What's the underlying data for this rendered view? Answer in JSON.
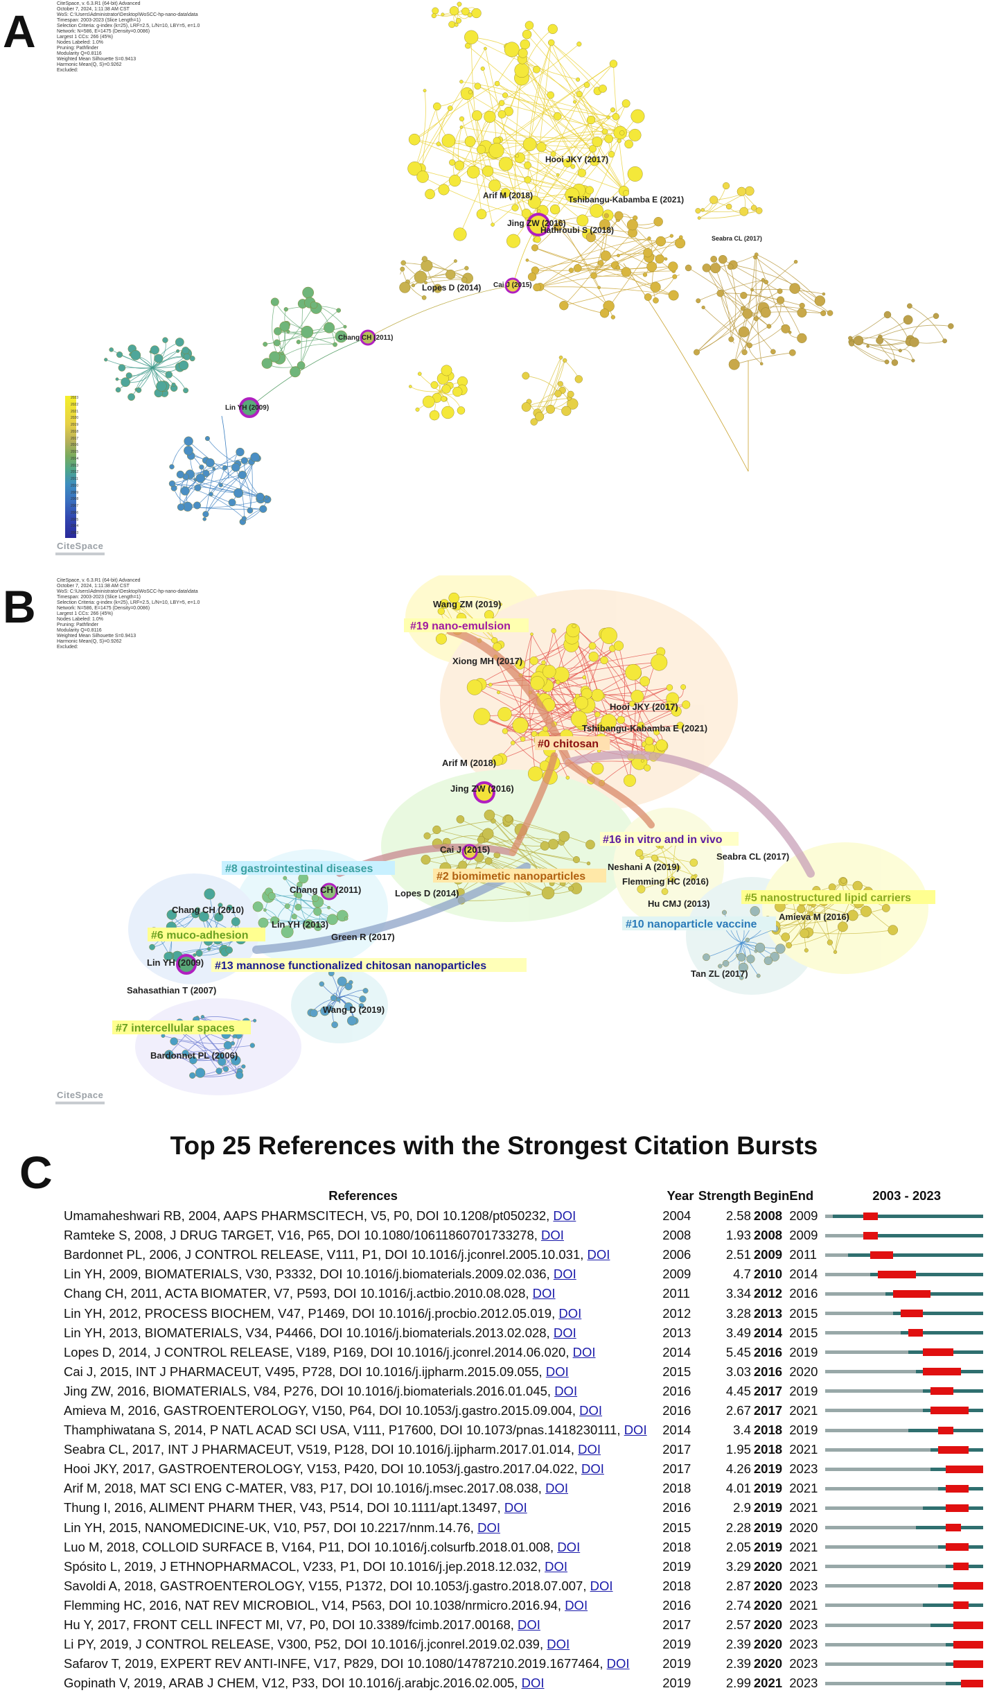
{
  "panel_a": {
    "letter": "A",
    "meta_lines": [
      "CiteSpace, v. 6.3.R1 (64-bit) Advanced",
      "October 7, 2024, 1:11:38 AM CST",
      "WoS: C:\\Users\\Administrator\\Desktop\\WoSCC-hp-nano-data\\data",
      "Timespan: 2003-2023 (Slice Length=1)",
      "Selection Criteria: g-index (k=25), LRF=2.5, L/N=10, LBY=5, e=1.0",
      "Network: N=586, E=1475 (Density=0.0086)",
      "Largest 1 CCs: 266 (45%)",
      "Nodes Labeled: 1.0%",
      "Pruning: Pathfinder",
      "Modularity Q=0.8116",
      "Weighted Mean Silhouette S=0.9413",
      "Harmonic Mean(Q, S)=0.9262",
      "Excluded:"
    ],
    "node_labels": {
      "hooi": "Hooi JKY (2017)",
      "arif": "Arif M (2018)",
      "tshibangu": "Tshibangu-Kabamba E (2021)",
      "jing": "Jing ZW (2016)",
      "hathroubi": "Hathroubi S (2018)",
      "seabra": "Seabra CL (2017)",
      "lopes": "Lopes D (2014)",
      "cai": "Cai J (2015)",
      "chang": "Chang CH (2011)",
      "lin": "Lin YH (2009)"
    },
    "legend_years": [
      "2023",
      "2022",
      "2021",
      "2020",
      "2019",
      "2018",
      "2017",
      "2016",
      "2015",
      "2014",
      "2013",
      "2012",
      "2011",
      "2010",
      "2009",
      "2008",
      "2007",
      "2006",
      "2005",
      "2004",
      "2003"
    ],
    "logo": "CiteSpace"
  },
  "panel_b": {
    "letter": "B",
    "meta_lines": [
      "CiteSpace, v. 6.3.R1 (64-bit) Advanced",
      "October 7, 2024, 1:11:38 AM CST",
      "WoS: C:\\Users\\Administrator\\Desktop\\WoSCC-hp-nano-data\\data",
      "Timespan: 2003-2023 (Slice Length=1)",
      "Selection Criteria: g-index (k=25), LRF=2.5, L/N=10, LBY=5, e=1.0",
      "Network: N=586, E=1475 (Density=0.0086)",
      "Largest 1 CCs: 266 (45%)",
      "Nodes Labeled: 1.0%",
      "Pruning: Pathfinder",
      "Modularity Q=0.8116",
      "Weighted Mean Silhouette S=0.9413",
      "Harmonic Mean(Q, S)=0.9262",
      "Excluded:"
    ],
    "clusters": {
      "c19": "#19 nano-emulsion",
      "c0": "#0 chitosan",
      "c16": "#16 in vitro and in vivo",
      "c8": "#8 gastrointestinal diseases",
      "c2": "#2 biomimetic nanoparticles",
      "c5": "#5 nanostructured lipid carriers",
      "c10": "#10 nanoparticle vaccine",
      "c6": "#6 muco-adhesion",
      "c13": "#13 mannose functionalized chitosan nanoparticles",
      "c7": "#7 intercellular spaces"
    },
    "node_labels": {
      "wangzm": "Wang ZM (2019)",
      "xiong": "Xiong MH (2017)",
      "hooi": "Hooi JKY (2017)",
      "tshibangu": "Tshibangu-Kabamba E (2021)",
      "arif": "Arif M (2018)",
      "jing": "Jing ZW (2016)",
      "cai": "Cai J (2015)",
      "neshani": "Neshani A (2019)",
      "seabra": "Seabra CL (2017)",
      "flemming": "Flemming HC (2016)",
      "chang2011": "Chang CH (2011)",
      "lopes": "Lopes D (2014)",
      "hucmj": "Hu CMJ (2013)",
      "amieva": "Amieva M (2016)",
      "chang2010": "Chang CH (2010)",
      "lin2013": "Lin YH (2013)",
      "green": "Green R (2017)",
      "lin2009": "Lin YH (2009)",
      "tan": "Tan ZL (2017)",
      "sahasathian": "Sahasathian T (2007)",
      "wangd": "Wang D (2019)",
      "bardonnet": "Bardonnet PL (2006)"
    },
    "logo": "CiteSpace"
  },
  "panel_c": {
    "letter": "C",
    "title": "Top 25 References with the Strongest Citation Bursts",
    "headers": {
      "references": "References",
      "year": "Year",
      "strength": "Strength",
      "begin": "Begin",
      "end": "End",
      "range": "2003 - 2023"
    },
    "timeline": {
      "start": 2003,
      "end": 2023
    },
    "rows": [
      {
        "ref": "Umamaheshwari RB, 2004, AAPS PHARMSCITECH, V5, P0, DOI 10.1208/pt050232,",
        "doi": "DOI",
        "year": "2004",
        "strength": "2.58",
        "begin": "2008",
        "end": "2009",
        "y": 2004,
        "b": 2008,
        "e": 2009
      },
      {
        "ref": "Ramteke S, 2008, J DRUG TARGET, V16, P65, DOI 10.1080/10611860701733278,",
        "doi": "DOI",
        "year": "2008",
        "strength": "1.93",
        "begin": "2008",
        "end": "2009",
        "y": 2008,
        "b": 2008,
        "e": 2009
      },
      {
        "ref": "Bardonnet PL, 2006, J CONTROL RELEASE, V111, P1, DOI 10.1016/j.jconrel.2005.10.031,",
        "doi": "DOI",
        "year": "2006",
        "strength": "2.51",
        "begin": "2009",
        "end": "2011",
        "y": 2006,
        "b": 2009,
        "e": 2011
      },
      {
        "ref": "Lin YH, 2009, BIOMATERIALS, V30, P3332, DOI 10.1016/j.biomaterials.2009.02.036,",
        "doi": "DOI",
        "year": "2009",
        "strength": "4.7",
        "begin": "2010",
        "end": "2014",
        "y": 2009,
        "b": 2010,
        "e": 2014
      },
      {
        "ref": "Chang CH, 2011, ACTA BIOMATER, V7, P593, DOI 10.1016/j.actbio.2010.08.028,",
        "doi": "DOI",
        "year": "2011",
        "strength": "3.34",
        "begin": "2012",
        "end": "2016",
        "y": 2011,
        "b": 2012,
        "e": 2016
      },
      {
        "ref": "Lin YH, 2012, PROCESS BIOCHEM, V47, P1469, DOI 10.1016/j.procbio.2012.05.019,",
        "doi": "DOI",
        "year": "2012",
        "strength": "3.28",
        "begin": "2013",
        "end": "2015",
        "y": 2012,
        "b": 2013,
        "e": 2015
      },
      {
        "ref": "Lin YH, 2013, BIOMATERIALS, V34, P4466, DOI 10.1016/j.biomaterials.2013.02.028,",
        "doi": "DOI",
        "year": "2013",
        "strength": "3.49",
        "begin": "2014",
        "end": "2015",
        "y": 2013,
        "b": 2014,
        "e": 2015
      },
      {
        "ref": "Lopes D, 2014, J CONTROL RELEASE, V189, P169, DOI 10.1016/j.jconrel.2014.06.020,",
        "doi": "DOI",
        "year": "2014",
        "strength": "5.45",
        "begin": "2016",
        "end": "2019",
        "y": 2014,
        "b": 2016,
        "e": 2019
      },
      {
        "ref": "Cai J, 2015, INT J PHARMACEUT, V495, P728, DOI 10.1016/j.ijpharm.2015.09.055,",
        "doi": "DOI",
        "year": "2015",
        "strength": "3.03",
        "begin": "2016",
        "end": "2020",
        "y": 2015,
        "b": 2016,
        "e": 2020
      },
      {
        "ref": "Jing ZW, 2016, BIOMATERIALS, V84, P276, DOI 10.1016/j.biomaterials.2016.01.045,",
        "doi": "DOI",
        "year": "2016",
        "strength": "4.45",
        "begin": "2017",
        "end": "2019",
        "y": 2016,
        "b": 2017,
        "e": 2019
      },
      {
        "ref": "Amieva M, 2016, GASTROENTEROLOGY, V150, P64, DOI 10.1053/j.gastro.2015.09.004,",
        "doi": "DOI",
        "year": "2016",
        "strength": "2.67",
        "begin": "2017",
        "end": "2021",
        "y": 2016,
        "b": 2017,
        "e": 2021
      },
      {
        "ref": "Thamphiwatana S, 2014, P NATL ACAD SCI USA, V111, P17600, DOI 10.1073/pnas.1418230111,",
        "doi": "DOI",
        "year": "2014",
        "strength": "3.4",
        "begin": "2018",
        "end": "2019",
        "y": 2014,
        "b": 2018,
        "e": 2019
      },
      {
        "ref": "Seabra CL, 2017, INT J PHARMACEUT, V519, P128, DOI 10.1016/j.ijpharm.2017.01.014,",
        "doi": "DOI",
        "year": "2017",
        "strength": "1.95",
        "begin": "2018",
        "end": "2021",
        "y": 2017,
        "b": 2018,
        "e": 2021
      },
      {
        "ref": "Hooi JKY, 2017, GASTROENTEROLOGY, V153, P420, DOI 10.1053/j.gastro.2017.04.022,",
        "doi": "DOI",
        "year": "2017",
        "strength": "4.26",
        "begin": "2019",
        "end": "2023",
        "y": 2017,
        "b": 2019,
        "e": 2023
      },
      {
        "ref": "Arif M, 2018, MAT SCI ENG C-MATER, V83, P17, DOI 10.1016/j.msec.2017.08.038,",
        "doi": "DOI",
        "year": "2018",
        "strength": "4.01",
        "begin": "2019",
        "end": "2021",
        "y": 2018,
        "b": 2019,
        "e": 2021
      },
      {
        "ref": "Thung I, 2016, ALIMENT PHARM THER, V43, P514, DOI 10.1111/apt.13497,",
        "doi": "DOI",
        "year": "2016",
        "strength": "2.9",
        "begin": "2019",
        "end": "2021",
        "y": 2016,
        "b": 2019,
        "e": 2021
      },
      {
        "ref": "Lin YH, 2015, NANOMEDICINE-UK, V10, P57, DOI 10.2217/nnm.14.76,",
        "doi": "DOI",
        "year": "2015",
        "strength": "2.28",
        "begin": "2019",
        "end": "2020",
        "y": 2015,
        "b": 2019,
        "e": 2020
      },
      {
        "ref": "Luo M, 2018, COLLOID SURFACE B, V164, P11, DOI 10.1016/j.colsurfb.2018.01.008,",
        "doi": "DOI",
        "year": "2018",
        "strength": "2.05",
        "begin": "2019",
        "end": "2021",
        "y": 2018,
        "b": 2019,
        "e": 2021
      },
      {
        "ref": "Spósito L, 2019, J ETHNOPHARMACOL, V233, P1, DOI 10.1016/j.jep.2018.12.032,",
        "doi": "DOI",
        "year": "2019",
        "strength": "3.29",
        "begin": "2020",
        "end": "2021",
        "y": 2019,
        "b": 2020,
        "e": 2021
      },
      {
        "ref": "Savoldi A, 2018, GASTROENTEROLOGY, V155, P1372, DOI 10.1053/j.gastro.2018.07.007,",
        "doi": "DOI",
        "year": "2018",
        "strength": "2.87",
        "begin": "2020",
        "end": "2023",
        "y": 2018,
        "b": 2020,
        "e": 2023
      },
      {
        "ref": "Flemming HC, 2016, NAT REV MICROBIOL, V14, P563, DOI 10.1038/nrmicro.2016.94,",
        "doi": "DOI",
        "year": "2016",
        "strength": "2.74",
        "begin": "2020",
        "end": "2021",
        "y": 2016,
        "b": 2020,
        "e": 2021
      },
      {
        "ref": "Hu Y, 2017, FRONT CELL INFECT MI, V7, P0, DOI 10.3389/fcimb.2017.00168,",
        "doi": "DOI",
        "year": "2017",
        "strength": "2.57",
        "begin": "2020",
        "end": "2023",
        "y": 2017,
        "b": 2020,
        "e": 2023
      },
      {
        "ref": "Li PY, 2019, J CONTROL RELEASE, V300, P52, DOI 10.1016/j.jconrel.2019.02.039,",
        "doi": "DOI",
        "year": "2019",
        "strength": "2.39",
        "begin": "2020",
        "end": "2023",
        "y": 2019,
        "b": 2020,
        "e": 2023
      },
      {
        "ref": "Safarov T, 2019, EXPERT REV ANTI-INFE, V17, P829, DOI 10.1080/14787210.2019.1677464,",
        "doi": "DOI",
        "year": "2019",
        "strength": "2.39",
        "begin": "2020",
        "end": "2023",
        "y": 2019,
        "b": 2020,
        "e": 2023
      },
      {
        "ref": "Gopinath V, 2019, ARAB J CHEM, V12, P33, DOI 10.1016/j.arabjc.2016.02.005,",
        "doi": "DOI",
        "year": "2019",
        "strength": "2.99",
        "begin": "2021",
        "end": "2023",
        "y": 2019,
        "b": 2021,
        "e": 2023
      }
    ]
  }
}
